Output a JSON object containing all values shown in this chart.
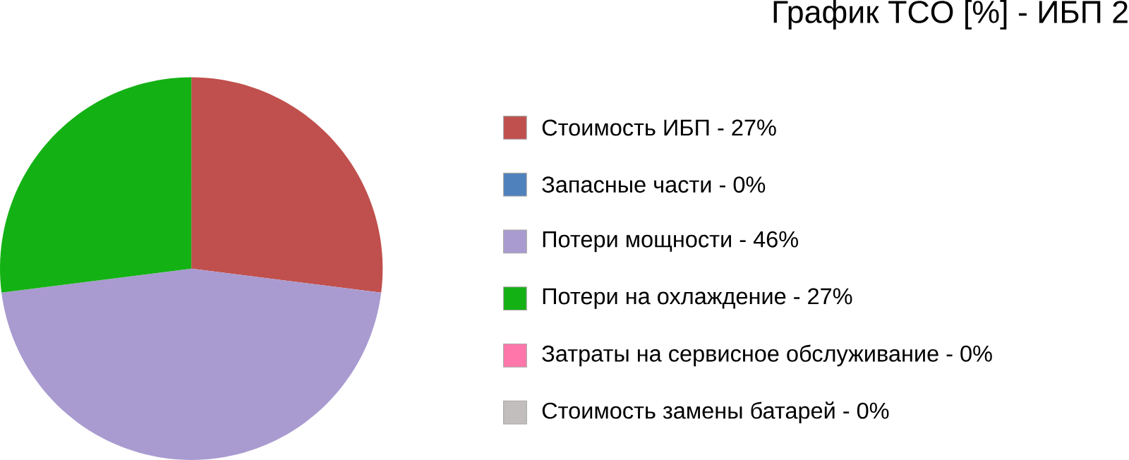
{
  "chart_data": {
    "type": "pie",
    "title": "График TCO [%] - ИБП 2",
    "categories": [
      "Стоимость ИБП - 27%",
      "Запасные части - 0%",
      "Потери мощности - 46%",
      "Потери на охлаждение - 27%",
      "Затраты на сервисное обслуживание - 0%",
      "Стоимость замены батарей - 0%"
    ],
    "values": [
      27,
      0,
      46,
      27,
      0,
      0
    ],
    "colors": [
      "#c0504d",
      "#4f81bd",
      "#a99bd0",
      "#14b114",
      "#ff77aa",
      "#c3bebe"
    ],
    "legend": "right"
  }
}
